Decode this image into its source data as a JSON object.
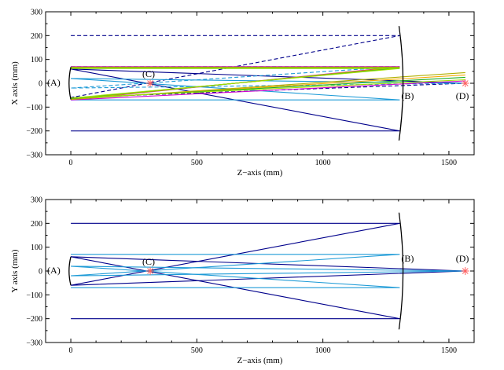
{
  "chart_data": [
    {
      "type": "line",
      "xlabel": "Z−axis (mm)",
      "ylabel": "X axis (mm)",
      "xlim": [
        -100,
        1600
      ],
      "ylim": [
        -300,
        300
      ],
      "xticks": [
        0,
        500,
        1000,
        1500
      ],
      "yticks": [
        -300,
        -200,
        -100,
        0,
        100,
        200,
        300
      ],
      "xtick_labels": [
        "0",
        "500",
        "1000",
        "1500"
      ],
      "ytick_labels": [
        "−300",
        "−200",
        "−100",
        "0",
        "100",
        "200",
        "300"
      ],
      "grid": false,
      "curves": [
        {
          "name": "secondary-mirror",
          "x": [
            0,
            -7,
            0
          ],
          "y": [
            68,
            0,
            -68
          ],
          "color": "#000000",
          "width": 1.3
        },
        {
          "name": "primary-mirror",
          "x": [
            1302,
            1318,
            1302
          ],
          "y": [
            240,
            0,
            -240
          ],
          "color": "#000000",
          "width": 1.3
        }
      ],
      "series": [
        {
          "x": [
            0,
            1305,
            0,
            1565
          ],
          "y": [
            -200,
            -200,
            60,
            0
          ],
          "color": "#00008b",
          "dash": false
        },
        {
          "x": [
            0,
            1305,
            0,
            1565
          ],
          "y": [
            200,
            200,
            -60,
            0
          ],
          "color": "#00008b",
          "dash": true
        },
        {
          "x": [
            0,
            1305,
            0,
            1565
          ],
          "y": [
            -70,
            -70,
            20,
            0
          ],
          "color": "#1e9bd7",
          "dash": false
        },
        {
          "x": [
            0,
            1305,
            0,
            1565
          ],
          "y": [
            70,
            70,
            -20,
            0
          ],
          "color": "#1e9bd7",
          "dash": true
        },
        {
          "x": [
            0,
            1305,
            0,
            1565
          ],
          "y": [
            70,
            70,
            -70,
            10
          ],
          "color": "#d000d0",
          "dash": false
        },
        {
          "x": [
            0,
            1305,
            0,
            1565
          ],
          "y": [
            68,
            68,
            -68,
            45
          ],
          "color": "#b0b000",
          "dash": false
        },
        {
          "x": [
            0,
            1305,
            0,
            1565
          ],
          "y": [
            66,
            66,
            -66,
            35
          ],
          "color": "#f7a800",
          "dash": false
        },
        {
          "x": [
            0,
            1305,
            0,
            1565
          ],
          "y": [
            64,
            64,
            -64,
            25
          ],
          "color": "#20b020",
          "dash": false
        },
        {
          "x": [
            0,
            1305,
            0,
            1565
          ],
          "y": [
            62,
            62,
            -62,
            15
          ],
          "color": "#a0e000",
          "dash": false
        }
      ],
      "points": [
        {
          "label": "(A)",
          "x": 0,
          "y": 0,
          "label_dx": -30,
          "label_dy": 3,
          "marker": false
        },
        {
          "label": "(C)",
          "x": 315,
          "y": 0,
          "label_dx": -10,
          "label_dy": -8,
          "marker": true,
          "marker_color": "#ff6060"
        },
        {
          "label": "(B)",
          "x": 1305,
          "y": 0,
          "label_dx": 2,
          "label_dy": 20,
          "marker": false
        },
        {
          "label": "(D)",
          "x": 1565,
          "y": 0,
          "label_dx": -12,
          "label_dy": 20,
          "marker": true,
          "marker_color": "#ff6060"
        }
      ]
    },
    {
      "type": "line",
      "xlabel": "Z−axis (mm)",
      "ylabel": "Y axis (mm)",
      "xlim": [
        -100,
        1600
      ],
      "ylim": [
        -300,
        300
      ],
      "xticks": [
        0,
        500,
        1000,
        1500
      ],
      "yticks": [
        -300,
        -200,
        -100,
        0,
        100,
        200,
        300
      ],
      "xtick_labels": [
        "0",
        "500",
        "1000",
        "1500"
      ],
      "ytick_labels": [
        "−300",
        "−200",
        "−100",
        "0",
        "100",
        "200",
        "300"
      ],
      "grid": false,
      "curves": [
        {
          "name": "secondary-mirror",
          "x": [
            0,
            -7,
            0
          ],
          "y": [
            60,
            0,
            -60
          ],
          "color": "#000000",
          "width": 1.3
        },
        {
          "name": "primary-mirror",
          "x": [
            1302,
            1318,
            1302
          ],
          "y": [
            245,
            0,
            -245
          ],
          "color": "#000000",
          "width": 1.3
        }
      ],
      "series": [
        {
          "x": [
            0,
            1305,
            0,
            1565
          ],
          "y": [
            200,
            200,
            -60,
            0
          ],
          "color": "#00008b",
          "dash": false
        },
        {
          "x": [
            0,
            1305,
            0,
            1565
          ],
          "y": [
            -200,
            -200,
            60,
            0
          ],
          "color": "#00008b",
          "dash": false
        },
        {
          "x": [
            0,
            1305,
            0,
            1565
          ],
          "y": [
            70,
            70,
            -20,
            0
          ],
          "color": "#1e9bd7",
          "dash": false
        },
        {
          "x": [
            0,
            1305,
            0,
            1565
          ],
          "y": [
            -70,
            -70,
            20,
            0
          ],
          "color": "#1e9bd7",
          "dash": false
        }
      ],
      "points": [
        {
          "label": "(A)",
          "x": 0,
          "y": 0,
          "label_dx": -30,
          "label_dy": 3,
          "marker": false
        },
        {
          "label": "(C)",
          "x": 315,
          "y": 0,
          "label_dx": -10,
          "label_dy": -8,
          "marker": true,
          "marker_color": "#ff6060"
        },
        {
          "label": "(B)",
          "x": 1305,
          "y": 0,
          "label_dx": 2,
          "label_dy": -12,
          "marker": false
        },
        {
          "label": "(D)",
          "x": 1565,
          "y": 0,
          "label_dx": -12,
          "label_dy": -12,
          "marker": true,
          "marker_color": "#ff6060"
        }
      ]
    }
  ]
}
